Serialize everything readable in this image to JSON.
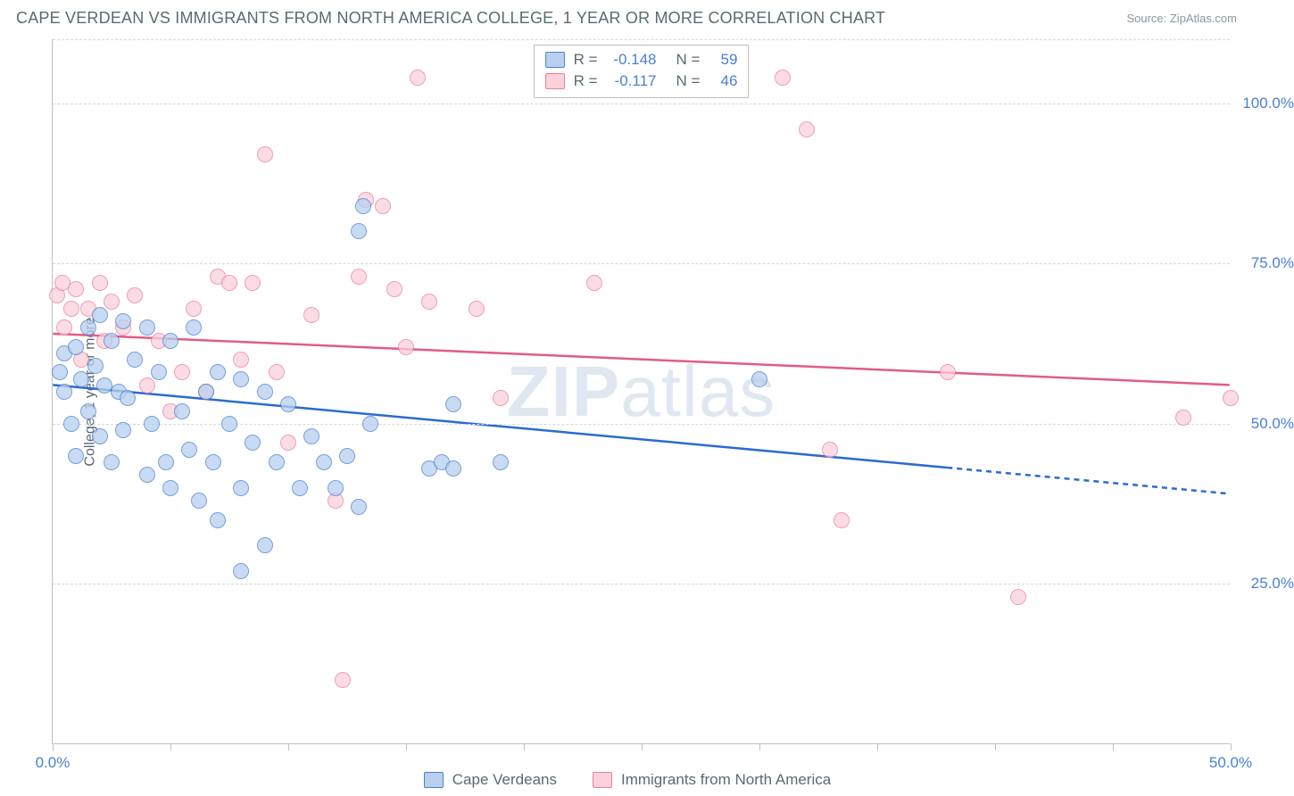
{
  "header": {
    "title": "CAPE VERDEAN VS IMMIGRANTS FROM NORTH AMERICA COLLEGE, 1 YEAR OR MORE CORRELATION CHART",
    "source_prefix": "Source: ",
    "source_name": "ZipAtlas.com"
  },
  "axes": {
    "y_label": "College, 1 year or more",
    "x_min": 0,
    "x_max": 50,
    "y_min": 0,
    "y_max": 110,
    "y_ticks": [
      25,
      50,
      75,
      100
    ],
    "y_tick_labels": [
      "25.0%",
      "50.0%",
      "75.0%",
      "100.0%"
    ],
    "x_ticks": [
      0,
      5,
      10,
      15,
      20,
      25,
      30,
      35,
      40,
      45,
      50
    ],
    "x_tick_labels": {
      "0": "0.0%",
      "50": "50.0%"
    }
  },
  "styling": {
    "blue_fill": "#b8d0ee",
    "blue_stroke": "#4b7fd1",
    "pink_fill": "#fcd1db",
    "pink_stroke": "#e97ea0",
    "blue_line": "#2a6bd1",
    "pink_line": "#e35b86",
    "marker_radius": 9,
    "marker_opacity": 0.75,
    "grid_color": "#d7d7d7",
    "axis_color": "#bfbfbf",
    "text_color": "#5a6a72",
    "tick_value_color": "#4b7fd1",
    "background": "#ffffff",
    "watermark_text": "ZIPatlas",
    "watermark_color": "#c8d4e4"
  },
  "stats": {
    "series1": {
      "R": "-0.148",
      "N": "59"
    },
    "series2": {
      "R": "-0.117",
      "N": "46"
    },
    "R_label": "R =",
    "N_label": "N ="
  },
  "legend": {
    "series1": "Cape Verdeans",
    "series2": "Immigrants from North America"
  },
  "series": {
    "blue": {
      "trend": {
        "y_at_xmin": 56,
        "y_at_xmax": 39,
        "solid_until_x": 38
      },
      "points": [
        [
          0.3,
          58
        ],
        [
          0.5,
          55
        ],
        [
          0.5,
          61
        ],
        [
          0.8,
          50
        ],
        [
          1,
          62
        ],
        [
          1,
          45
        ],
        [
          1.2,
          57
        ],
        [
          1.5,
          65
        ],
        [
          1.5,
          52
        ],
        [
          1.8,
          59
        ],
        [
          2,
          67
        ],
        [
          2,
          48
        ],
        [
          2.2,
          56
        ],
        [
          2.5,
          63
        ],
        [
          2.5,
          44
        ],
        [
          2.8,
          55
        ],
        [
          3,
          66
        ],
        [
          3,
          49
        ],
        [
          3.2,
          54
        ],
        [
          3.5,
          60
        ],
        [
          4,
          42
        ],
        [
          4,
          65
        ],
        [
          4.2,
          50
        ],
        [
          4.5,
          58
        ],
        [
          4.8,
          44
        ],
        [
          5,
          63
        ],
        [
          5,
          40
        ],
        [
          5.5,
          52
        ],
        [
          5.8,
          46
        ],
        [
          6,
          65
        ],
        [
          6.2,
          38
        ],
        [
          6.5,
          55
        ],
        [
          6.8,
          44
        ],
        [
          7,
          58
        ],
        [
          7,
          35
        ],
        [
          7.5,
          50
        ],
        [
          8,
          40
        ],
        [
          8,
          57
        ],
        [
          8,
          27
        ],
        [
          8.5,
          47
        ],
        [
          9,
          31
        ],
        [
          9,
          55
        ],
        [
          9.5,
          44
        ],
        [
          10,
          53
        ],
        [
          10.5,
          40
        ],
        [
          11,
          48
        ],
        [
          11.5,
          44
        ],
        [
          12,
          40
        ],
        [
          12.5,
          45
        ],
        [
          13,
          80
        ],
        [
          13.2,
          84
        ],
        [
          13.5,
          50
        ],
        [
          16,
          43
        ],
        [
          16.5,
          44
        ],
        [
          17,
          53
        ],
        [
          17,
          43
        ],
        [
          19,
          44
        ],
        [
          30,
          57
        ],
        [
          13,
          37
        ]
      ]
    },
    "pink": {
      "trend": {
        "y_at_xmin": 64,
        "y_at_xmax": 56
      },
      "points": [
        [
          0.2,
          70
        ],
        [
          0.4,
          72
        ],
        [
          0.5,
          65
        ],
        [
          0.8,
          68
        ],
        [
          1,
          71
        ],
        [
          1.2,
          60
        ],
        [
          1.5,
          68
        ],
        [
          2,
          72
        ],
        [
          2.2,
          63
        ],
        [
          2.5,
          69
        ],
        [
          3,
          65
        ],
        [
          3.5,
          70
        ],
        [
          4,
          56
        ],
        [
          4.5,
          63
        ],
        [
          5,
          52
        ],
        [
          5.5,
          58
        ],
        [
          6,
          68
        ],
        [
          6.5,
          55
        ],
        [
          7,
          73
        ],
        [
          7.5,
          72
        ],
        [
          8,
          60
        ],
        [
          8.5,
          72
        ],
        [
          9,
          92
        ],
        [
          9.5,
          58
        ],
        [
          10,
          47
        ],
        [
          12,
          38
        ],
        [
          12.3,
          10
        ],
        [
          13,
          73
        ],
        [
          13.3,
          85
        ],
        [
          14,
          84
        ],
        [
          14.5,
          71
        ],
        [
          15,
          62
        ],
        [
          16,
          69
        ],
        [
          18,
          68
        ],
        [
          19,
          54
        ],
        [
          23,
          72
        ],
        [
          31,
          104
        ],
        [
          32,
          96
        ],
        [
          33,
          46
        ],
        [
          33.5,
          35
        ],
        [
          38,
          58
        ],
        [
          41,
          23
        ],
        [
          48,
          51
        ],
        [
          50,
          54
        ],
        [
          15.5,
          104
        ],
        [
          11,
          67
        ]
      ]
    }
  }
}
